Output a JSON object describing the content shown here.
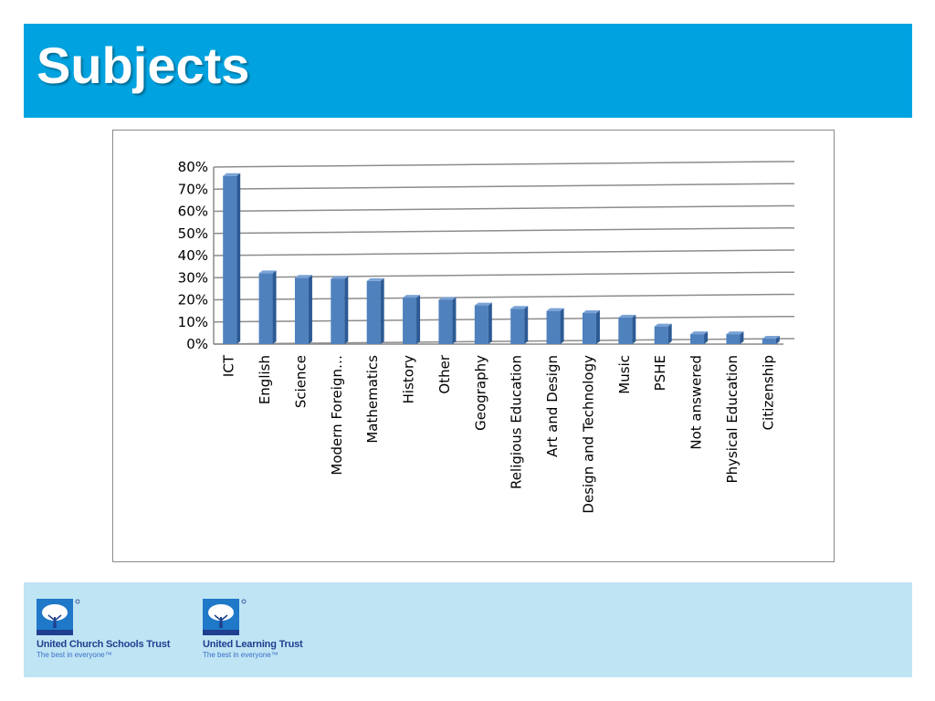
{
  "slide": {
    "title": "Subjects"
  },
  "chart_data": {
    "type": "bar",
    "categories": [
      "ICT",
      "English",
      "Science",
      "Modern Foreign…",
      "Mathematics",
      "History",
      "Other",
      "Geography",
      "Religious Education",
      "Art and Design",
      "Design and Technology",
      "Music",
      "PSHE",
      "Not answered",
      "Physical Education",
      "Citizenship"
    ],
    "values": [
      76,
      32,
      30,
      29.5,
      28.5,
      21,
      20,
      17.5,
      16,
      15,
      14,
      12,
      8,
      4.5,
      4.5,
      2.5
    ],
    "yticks": [
      "0%",
      "10%",
      "20%",
      "30%",
      "40%",
      "50%",
      "60%",
      "70%",
      "80%"
    ],
    "ylim": [
      0,
      80
    ],
    "grid": true,
    "style": "3d-column",
    "colors": {
      "bar_front": "#4f81bd",
      "bar_side": "#2c5a94",
      "bar_top": "#7aa2d6",
      "gridline": "#8c8c8c"
    }
  },
  "footer": {
    "logos": [
      {
        "name": "United Church Schools Trust",
        "tagline": "The best in everyone™",
        "icon": "tree-icon"
      },
      {
        "name": "United Learning Trust",
        "tagline": "The best in everyone™",
        "icon": "tree-icon"
      }
    ]
  }
}
